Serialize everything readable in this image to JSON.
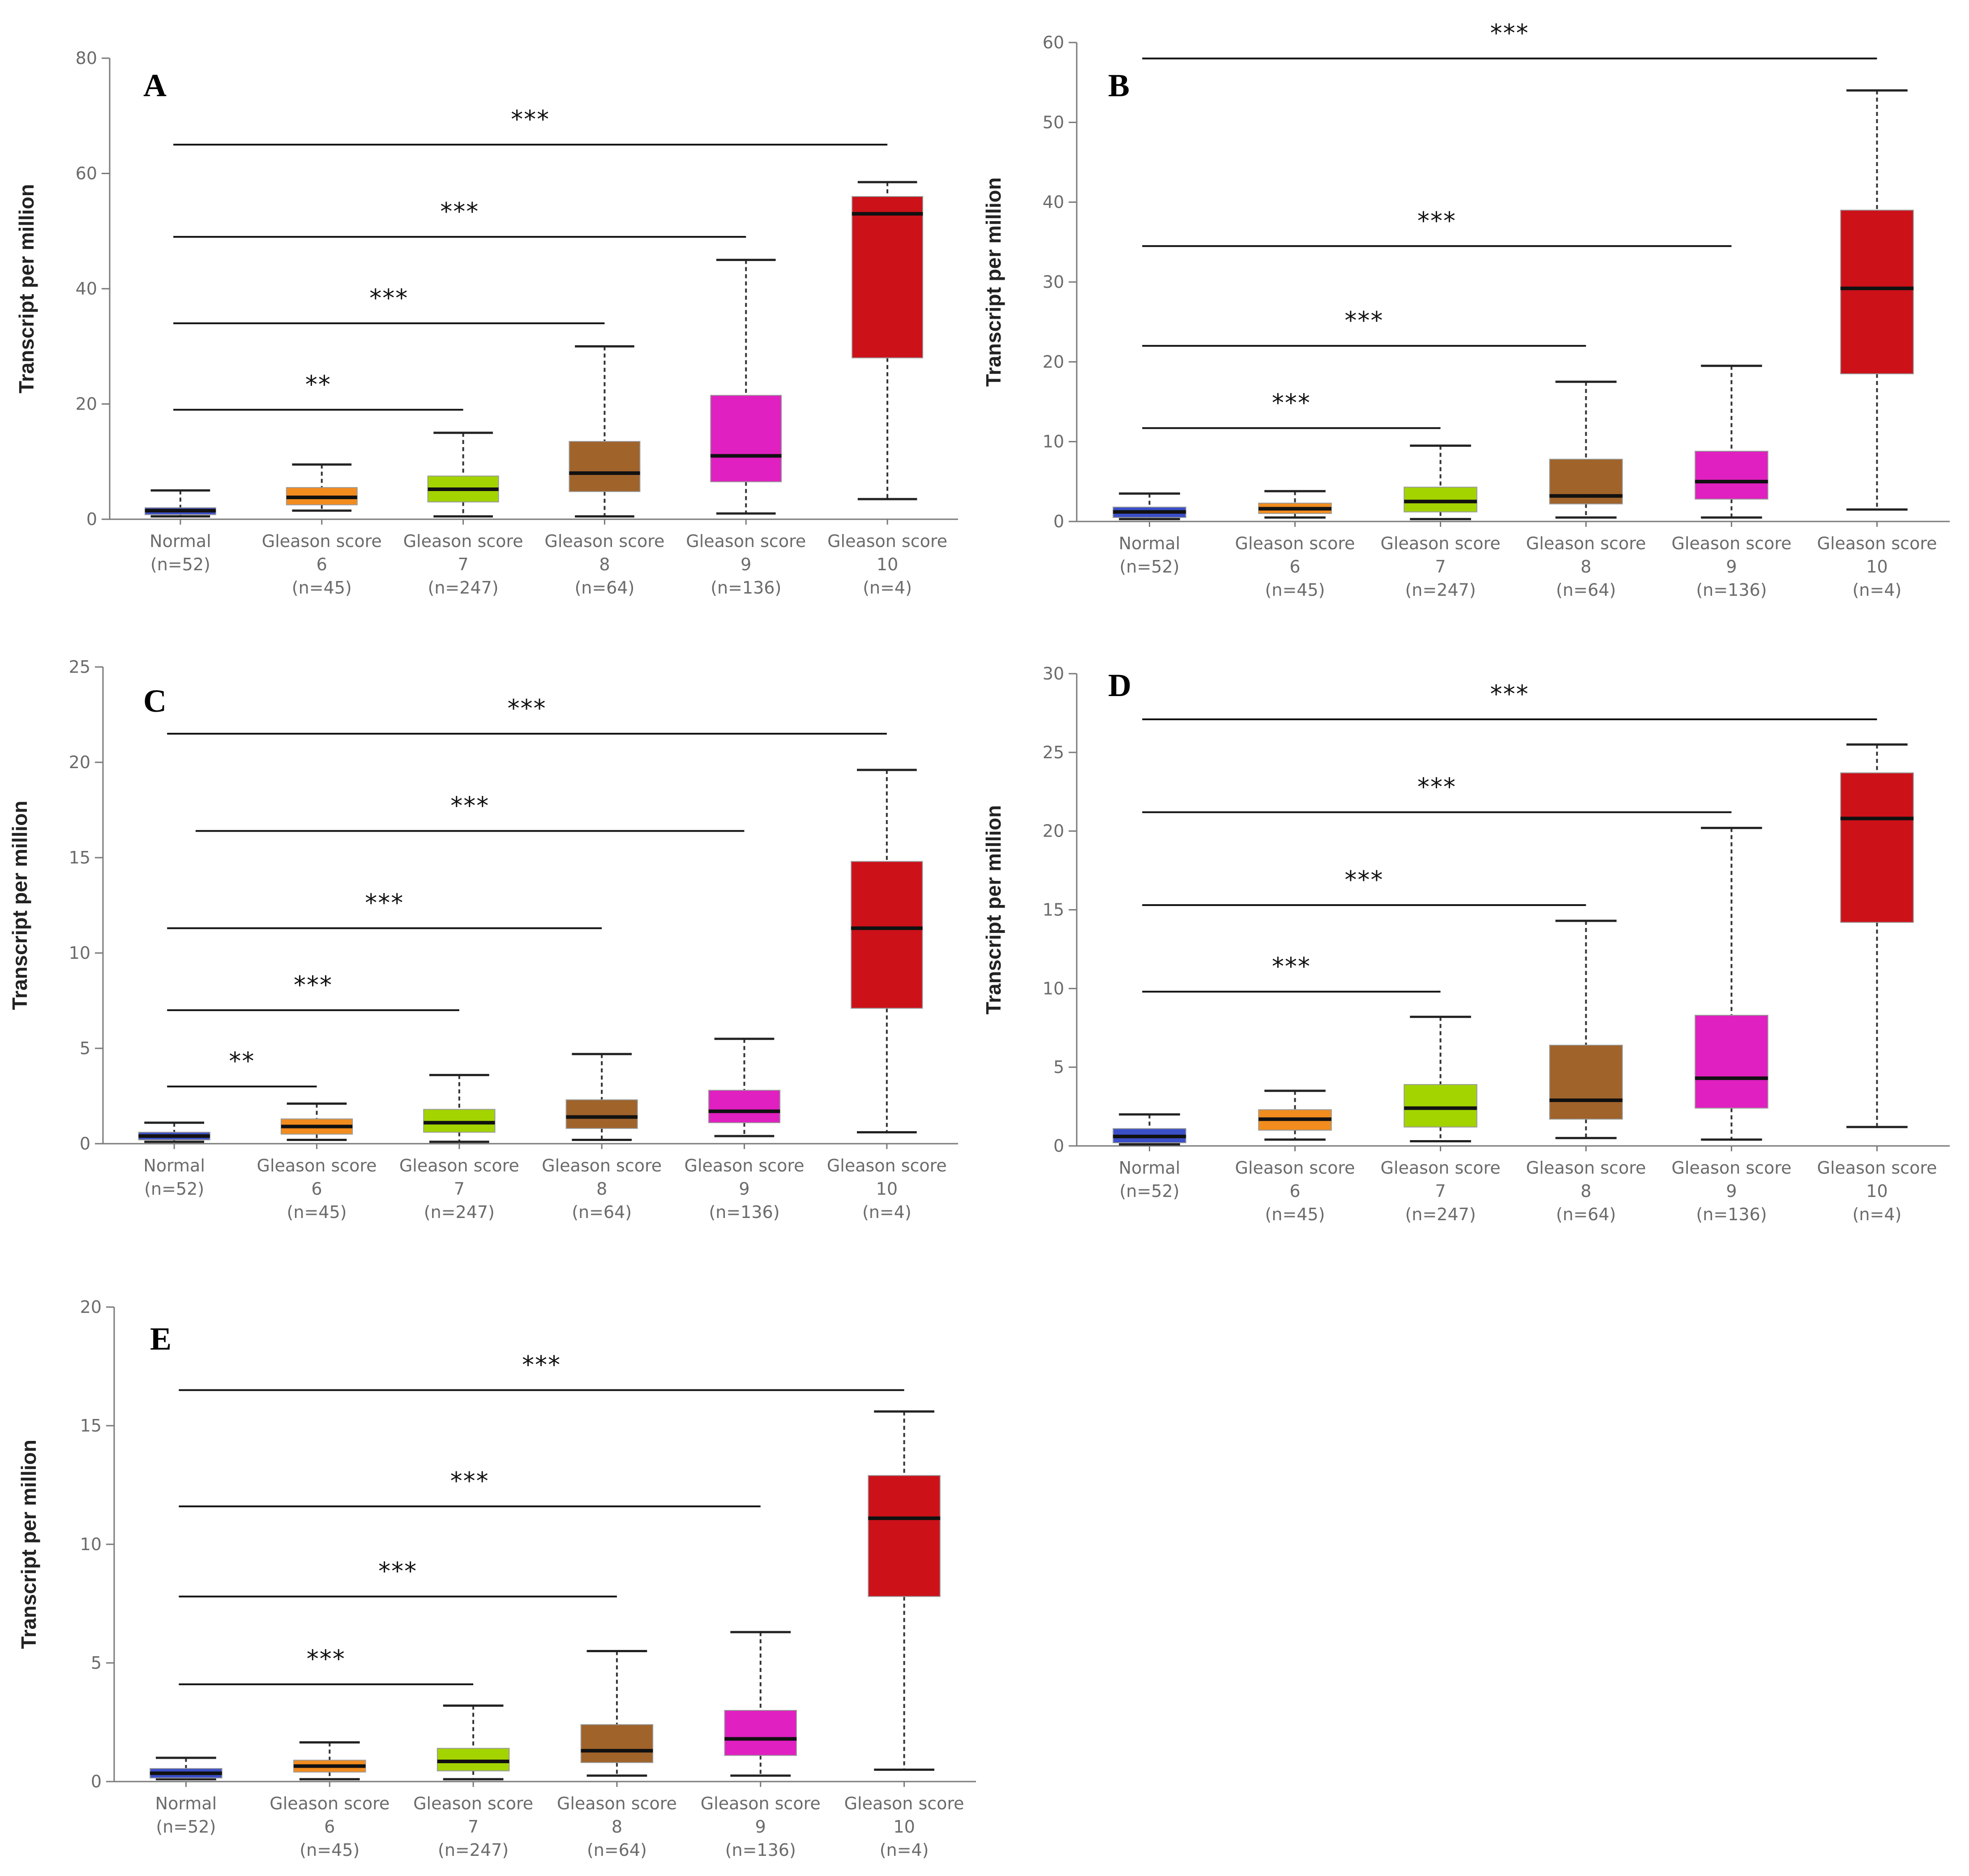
{
  "figure": {
    "ylabel": "Transcript per million",
    "group_colors": [
      "#3b4fc8",
      "#f28c1e",
      "#a3d400",
      "#a0632a",
      "#e020c0",
      "#cc1119"
    ]
  },
  "chart_data": [
    {
      "type": "box",
      "panel": "A",
      "ylabel": "Transcript per million",
      "ylim": [
        0,
        80
      ],
      "yticks": [
        0,
        20,
        40,
        60,
        80
      ],
      "categories": [
        {
          "lines": [
            "Normal",
            "(n=52)"
          ]
        },
        {
          "lines": [
            "Gleason score",
            "6",
            "(n=45)"
          ]
        },
        {
          "lines": [
            "Gleason score",
            "7",
            "(n=247)"
          ]
        },
        {
          "lines": [
            "Gleason score",
            "8",
            "(n=64)"
          ]
        },
        {
          "lines": [
            "Gleason score",
            "9",
            "(n=136)"
          ]
        },
        {
          "lines": [
            "Gleason score",
            "10",
            "(n=4)"
          ]
        }
      ],
      "boxes": [
        {
          "min": 0.5,
          "q1": 0.8,
          "median": 1.5,
          "q3": 2.0,
          "max": 5.0
        },
        {
          "min": 1.5,
          "q1": 2.5,
          "median": 3.8,
          "q3": 5.5,
          "max": 9.5
        },
        {
          "min": 0.5,
          "q1": 3.0,
          "median": 5.2,
          "q3": 7.5,
          "max": 15.0
        },
        {
          "min": 0.5,
          "q1": 4.8,
          "median": 8.0,
          "q3": 13.5,
          "max": 30.0
        },
        {
          "min": 1.0,
          "q1": 6.5,
          "median": 11.0,
          "q3": 21.5,
          "max": 45.0
        },
        {
          "min": 3.5,
          "q1": 28.0,
          "median": 53.0,
          "q3": 56.0,
          "max": 58.5
        }
      ],
      "significance": [
        {
          "from": 0,
          "to": 2,
          "label": "**",
          "y": 19
        },
        {
          "from": 0,
          "to": 3,
          "label": "***",
          "y": 34
        },
        {
          "from": 0,
          "to": 4,
          "label": "***",
          "y": 49
        },
        {
          "from": 0,
          "to": 5,
          "label": "***",
          "y": 65
        }
      ]
    },
    {
      "type": "box",
      "panel": "B",
      "ylabel": "Transcript per million",
      "ylim": [
        0,
        60
      ],
      "yticks": [
        0,
        10,
        20,
        30,
        40,
        50,
        60
      ],
      "categories": [
        {
          "lines": [
            "Normal",
            "(n=52)"
          ]
        },
        {
          "lines": [
            "Gleason score",
            "6",
            "(n=45)"
          ]
        },
        {
          "lines": [
            "Gleason score",
            "7",
            "(n=247)"
          ]
        },
        {
          "lines": [
            "Gleason score",
            "8",
            "(n=64)"
          ]
        },
        {
          "lines": [
            "Gleason score",
            "9",
            "(n=136)"
          ]
        },
        {
          "lines": [
            "Gleason score",
            "10",
            "(n=4)"
          ]
        }
      ],
      "boxes": [
        {
          "min": 0.3,
          "q1": 0.5,
          "median": 1.2,
          "q3": 1.8,
          "max": 3.5
        },
        {
          "min": 0.5,
          "q1": 1.0,
          "median": 1.6,
          "q3": 2.3,
          "max": 3.8
        },
        {
          "min": 0.3,
          "q1": 1.2,
          "median": 2.5,
          "q3": 4.3,
          "max": 9.5
        },
        {
          "min": 0.5,
          "q1": 2.2,
          "median": 3.2,
          "q3": 7.8,
          "max": 17.5
        },
        {
          "min": 0.5,
          "q1": 2.8,
          "median": 5.0,
          "q3": 8.8,
          "max": 19.5
        },
        {
          "min": 1.5,
          "q1": 18.5,
          "median": 29.2,
          "q3": 39.0,
          "max": 54.0
        }
      ],
      "significance": [
        {
          "from": 0,
          "to": 2,
          "label": "***",
          "y": 11.7
        },
        {
          "from": 0,
          "to": 3,
          "label": "***",
          "y": 22
        },
        {
          "from": 0,
          "to": 4,
          "label": "***",
          "y": 34.5
        },
        {
          "from": 0,
          "to": 5,
          "label": "***",
          "y": 58
        }
      ]
    },
    {
      "type": "box",
      "panel": "C",
      "ylabel": "Transcript per million",
      "ylim": [
        0,
        25
      ],
      "yticks": [
        0,
        5,
        10,
        15,
        20,
        25
      ],
      "categories": [
        {
          "lines": [
            "Normal",
            "(n=52)"
          ]
        },
        {
          "lines": [
            "Gleason score",
            "6",
            "(n=45)"
          ]
        },
        {
          "lines": [
            "Gleason score",
            "7",
            "(n=247)"
          ]
        },
        {
          "lines": [
            "Gleason score",
            "8",
            "(n=64)"
          ]
        },
        {
          "lines": [
            "Gleason score",
            "9",
            "(n=136)"
          ]
        },
        {
          "lines": [
            "Gleason score",
            "10",
            "(n=4)"
          ]
        }
      ],
      "boxes": [
        {
          "min": 0.1,
          "q1": 0.2,
          "median": 0.4,
          "q3": 0.6,
          "max": 1.1
        },
        {
          "min": 0.2,
          "q1": 0.5,
          "median": 0.9,
          "q3": 1.3,
          "max": 2.1
        },
        {
          "min": 0.1,
          "q1": 0.6,
          "median": 1.1,
          "q3": 1.8,
          "max": 3.6
        },
        {
          "min": 0.2,
          "q1": 0.8,
          "median": 1.4,
          "q3": 2.3,
          "max": 4.7
        },
        {
          "min": 0.4,
          "q1": 1.1,
          "median": 1.7,
          "q3": 2.8,
          "max": 5.5
        },
        {
          "min": 0.6,
          "q1": 7.1,
          "median": 11.3,
          "q3": 14.8,
          "max": 19.6
        }
      ],
      "significance": [
        {
          "from": 0,
          "to": 1,
          "label": "**",
          "y": 3.0
        },
        {
          "from": 0,
          "to": 2,
          "label": "***",
          "y": 7.0
        },
        {
          "from": 0,
          "to": 3,
          "label": "***",
          "y": 11.3
        },
        {
          "from": 0.2,
          "to": 4,
          "label": "***",
          "y": 16.4
        },
        {
          "from": 0,
          "to": 5,
          "label": "***",
          "y": 21.5
        }
      ]
    },
    {
      "type": "box",
      "panel": "D",
      "ylabel": "Transcript per million",
      "ylim": [
        0,
        30
      ],
      "yticks": [
        0,
        5,
        10,
        15,
        20,
        25,
        30
      ],
      "categories": [
        {
          "lines": [
            "Normal",
            "(n=52)"
          ]
        },
        {
          "lines": [
            "Gleason score",
            "6",
            "(n=45)"
          ]
        },
        {
          "lines": [
            "Gleason score",
            "7",
            "(n=247)"
          ]
        },
        {
          "lines": [
            "Gleason score",
            "8",
            "(n=64)"
          ]
        },
        {
          "lines": [
            "Gleason score",
            "9",
            "(n=136)"
          ]
        },
        {
          "lines": [
            "Gleason score",
            "10",
            "(n=4)"
          ]
        }
      ],
      "boxes": [
        {
          "min": 0.1,
          "q1": 0.2,
          "median": 0.6,
          "q3": 1.1,
          "max": 2.0
        },
        {
          "min": 0.4,
          "q1": 1.0,
          "median": 1.7,
          "q3": 2.3,
          "max": 3.5
        },
        {
          "min": 0.3,
          "q1": 1.2,
          "median": 2.4,
          "q3": 3.9,
          "max": 8.2
        },
        {
          "min": 0.5,
          "q1": 1.7,
          "median": 2.9,
          "q3": 6.4,
          "max": 14.3
        },
        {
          "min": 0.4,
          "q1": 2.4,
          "median": 4.3,
          "q3": 8.3,
          "max": 20.2
        },
        {
          "min": 1.2,
          "q1": 14.2,
          "median": 20.8,
          "q3": 23.7,
          "max": 25.5
        }
      ],
      "significance": [
        {
          "from": 0,
          "to": 2,
          "label": "***",
          "y": 9.8
        },
        {
          "from": 0,
          "to": 3,
          "label": "***",
          "y": 15.3
        },
        {
          "from": 0,
          "to": 4,
          "label": "***",
          "y": 21.2
        },
        {
          "from": 0,
          "to": 5,
          "label": "***",
          "y": 27.1
        }
      ]
    },
    {
      "type": "box",
      "panel": "E",
      "ylabel": "Transcript per million",
      "ylim": [
        0,
        20
      ],
      "yticks": [
        0,
        5,
        10,
        15,
        20
      ],
      "categories": [
        {
          "lines": [
            "Normal",
            "(n=52)"
          ]
        },
        {
          "lines": [
            "Gleason score",
            "6",
            "(n=45)"
          ]
        },
        {
          "lines": [
            "Gleason score",
            "7",
            "(n=247)"
          ]
        },
        {
          "lines": [
            "Gleason score",
            "8",
            "(n=64)"
          ]
        },
        {
          "lines": [
            "Gleason score",
            "9",
            "(n=136)"
          ]
        },
        {
          "lines": [
            "Gleason score",
            "10",
            "(n=4)"
          ]
        }
      ],
      "boxes": [
        {
          "min": 0.1,
          "q1": 0.15,
          "median": 0.35,
          "q3": 0.55,
          "max": 1.0
        },
        {
          "min": 0.1,
          "q1": 0.4,
          "median": 0.65,
          "q3": 0.9,
          "max": 1.65
        },
        {
          "min": 0.1,
          "q1": 0.45,
          "median": 0.85,
          "q3": 1.4,
          "max": 3.2
        },
        {
          "min": 0.25,
          "q1": 0.8,
          "median": 1.3,
          "q3": 2.4,
          "max": 5.5
        },
        {
          "min": 0.25,
          "q1": 1.1,
          "median": 1.8,
          "q3": 3.0,
          "max": 6.3
        },
        {
          "min": 0.5,
          "q1": 7.8,
          "median": 11.1,
          "q3": 12.9,
          "max": 15.6
        }
      ],
      "significance": [
        {
          "from": 0,
          "to": 2,
          "label": "***",
          "y": 4.1
        },
        {
          "from": 0,
          "to": 3,
          "label": "***",
          "y": 7.8
        },
        {
          "from": 0,
          "to": 4,
          "label": "***",
          "y": 11.6
        },
        {
          "from": 0,
          "to": 5,
          "label": "***",
          "y": 16.5
        }
      ]
    }
  ]
}
